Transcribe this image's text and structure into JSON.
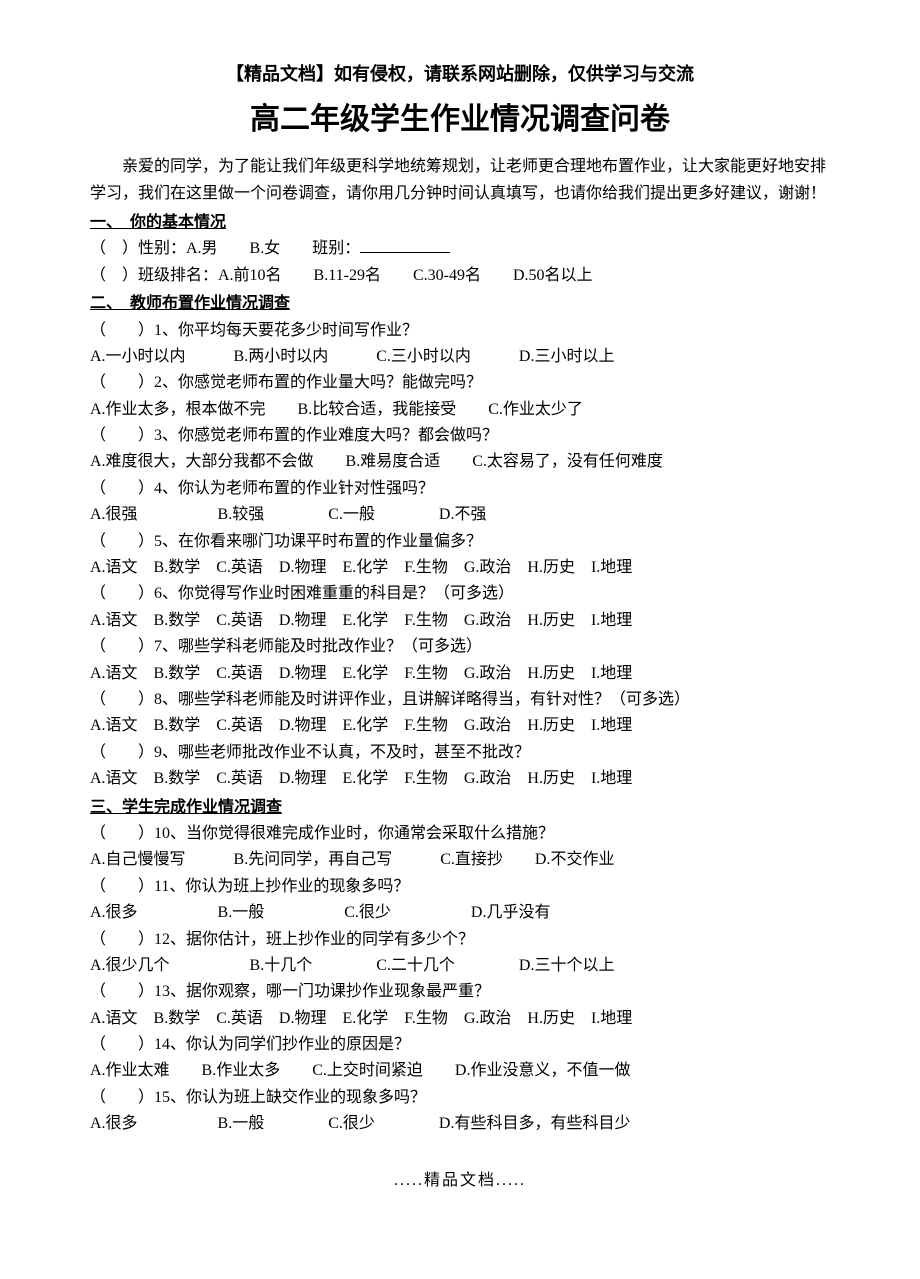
{
  "header_note": "【精品文档】如有侵权，请联系网站删除，仅供学习与交流",
  "title": "高二年级学生作业情况调查问卷",
  "intro1": "亲爱的同学，为了能让我们年级更科学地统筹规划，让老师更合理地布置作业，让大家能更好地安排学习，我们在这里做一个问卷调查，请你用几分钟时间认真填写，也请你给我们提出更多好建议，谢谢！",
  "section1": {
    "title": "一、　你的基本情况",
    "q_gender": "（　）性别：A.男　　B.女　　班别：",
    "q_rank": "（　）班级排名：A.前10名　　B.11-29名　　C.30-49名　　D.50名以上"
  },
  "section2": {
    "title": "二、　教师布置作业情况调查",
    "q1": "（　　）1、你平均每天要花多少时间写作业？",
    "a1": "A.一小时以内　　　B.两小时以内　　　C.三小时以内　　　D.三小时以上",
    "q2": "（　　）2、你感觉老师布置的作业量大吗？能做完吗？",
    "a2": "A.作业太多，根本做不完　　B.比较合适，我能接受　　C.作业太少了",
    "q3": "（　　）3、你感觉老师布置的作业难度大吗？都会做吗？",
    "a3": "A.难度很大，大部分我都不会做　　B.难易度合适　　C.太容易了，没有任何难度",
    "q4": "（　　）4、你认为老师布置的作业针对性强吗？",
    "a4": "A.很强　　　　　B.较强　　　　C.一般　　　　D.不强",
    "q5": "（　　）5、在你看来哪门功课平时布置的作业量偏多？",
    "a5": "A.语文　B.数学　C.英语　D.物理　E.化学　F.生物　G.政治　H.历史　I.地理",
    "q6": "（　　）6、你觉得写作业时困难重重的科目是？（可多选）",
    "a6": "A.语文　B.数学　C.英语　D.物理　E.化学　F.生物　G.政治　H.历史　I.地理",
    "q7": "（　　）7、哪些学科老师能及时批改作业？（可多选）",
    "a7": "A.语文　B.数学　C.英语　D.物理　E.化学　F.生物　G.政治　H.历史　I.地理",
    "q8": "（　　）8、哪些学科老师能及时讲评作业，且讲解详略得当，有针对性？（可多选）",
    "a8": "A.语文　B.数学　C.英语　D.物理　E.化学　F.生物　G.政治　H.历史　I.地理",
    "q9": "（　　）9、哪些老师批改作业不认真，不及时，甚至不批改？",
    "a9": "A.语文　B.数学　C.英语　D.物理　E.化学　F.生物　G.政治　H.历史　I.地理"
  },
  "section3": {
    "title": "三、学生完成作业情况调查",
    "q10": "（　　）10、当你觉得很难完成作业时，你通常会采取什么措施？",
    "a10": "A.自己慢慢写　　　B.先问同学，再自己写　　　C.直接抄　　D.不交作业",
    "q11": "（　　）11、你认为班上抄作业的现象多吗？",
    "a11": "A.很多　　　　　B.一般　　　　　C.很少　　　　　D.几乎没有",
    "q12": "（　　）12、据你估计，班上抄作业的同学有多少个？",
    "a12": "A.很少几个　　　　　B.十几个　　　　C.二十几个　　　　D.三十个以上",
    "q13": "（　　）13、据你观察，哪一门功课抄作业现象最严重？",
    "a13": "A.语文　B.数学　C.英语　D.物理　E.化学　F.生物　G.政治　H.历史　I.地理",
    "q14": "（　　）14、你认为同学们抄作业的原因是？",
    "a14": "A.作业太难　　B.作业太多　　C.上交时间紧迫　　D.作业没意义，不值一做",
    "q15": "（　　）15、你认为班上缺交作业的现象多吗？",
    "a15": "A.很多　　　　　B.一般　　　　C.很少　　　　D.有些科目多，有些科目少"
  },
  "footer": ".....精品文档....."
}
